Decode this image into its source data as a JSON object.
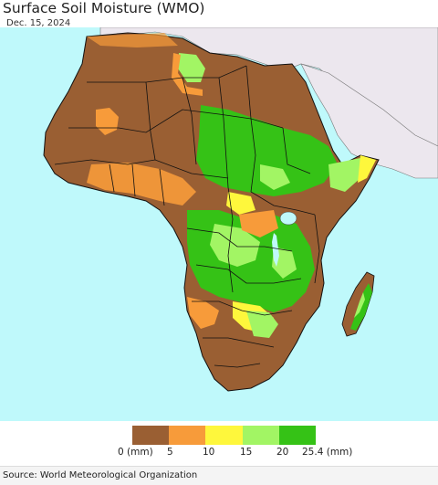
{
  "header": {
    "title": "Surface Soil Moisture (WMO)",
    "date": "Dec. 15, 2024"
  },
  "legend": {
    "unit_first": "0 (mm)",
    "ticks": [
      "5",
      "10",
      "15",
      "20"
    ],
    "unit_last": "25.4 (mm)",
    "colors": [
      "#9a5f33",
      "#f79b3a",
      "#fef73c",
      "#a2f564",
      "#35c216"
    ]
  },
  "footer": {
    "source": "Source: World Meteorological Organization"
  },
  "map": {
    "ocean_color": "#bff9fb",
    "no_data_color": "#ece7ee",
    "border_color": "#111111"
  }
}
